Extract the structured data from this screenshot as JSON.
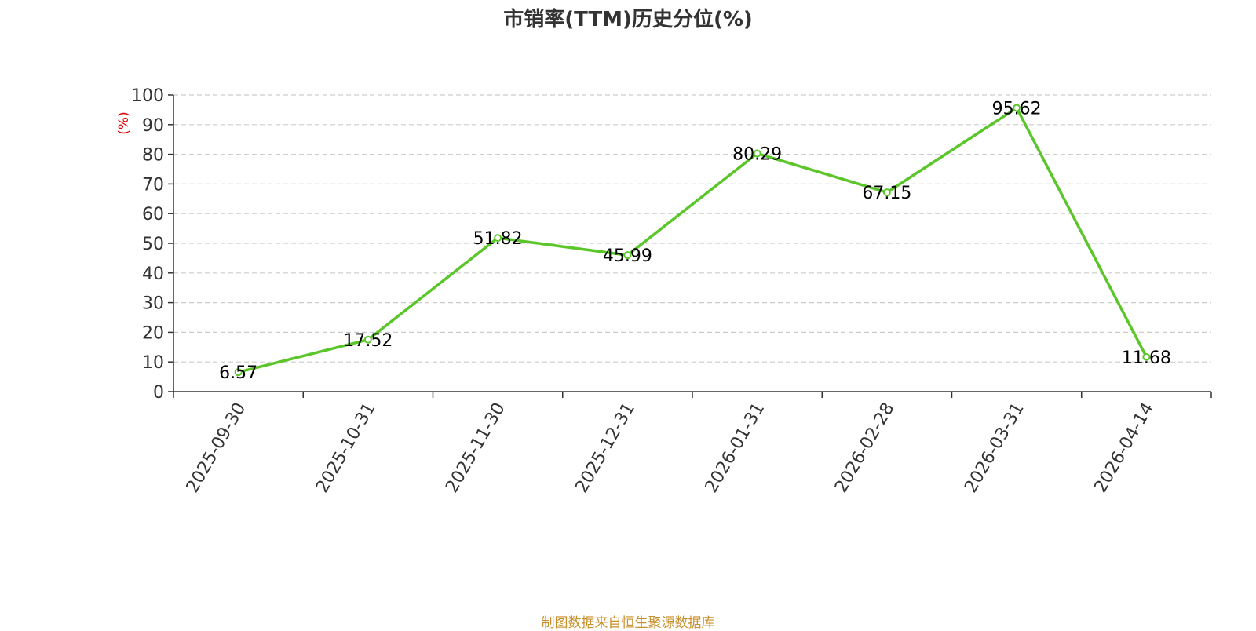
{
  "chart_data": {
    "type": "line",
    "title": "市销率(TTM)历史分位(%)",
    "ylabel": "(%)",
    "xlabel": "",
    "categories": [
      "2025-09-30",
      "2025-10-31",
      "2025-11-30",
      "2025-12-31",
      "2026-01-31",
      "2026-02-28",
      "2026-03-31",
      "2026-04-14"
    ],
    "series": [
      {
        "values": [
          6.57,
          17.52,
          51.82,
          45.99,
          80.29,
          67.15,
          95.62,
          11.68
        ]
      }
    ],
    "ylim": [
      0,
      100
    ],
    "yticks": [
      0,
      10,
      20,
      30,
      40,
      50,
      60,
      70,
      80,
      90,
      100
    ],
    "grid": true,
    "legend": "none",
    "line_color": "#5bc62a"
  },
  "footer": {
    "source": "制图数据来自恒生聚源数据库"
  }
}
